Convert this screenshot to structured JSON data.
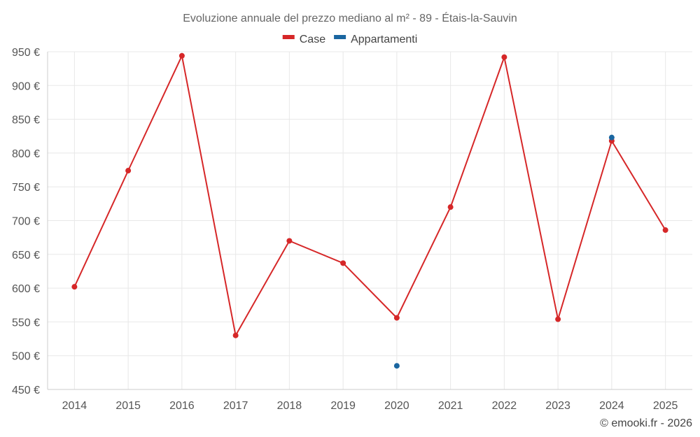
{
  "chart_data": {
    "type": "line",
    "title": "Evoluzione annuale del prezzo mediano al m² - 89 - Étais-la-Sauvin",
    "categories": [
      "2014",
      "2015",
      "2016",
      "2017",
      "2018",
      "2019",
      "2020",
      "2021",
      "2022",
      "2023",
      "2024",
      "2025"
    ],
    "series": [
      {
        "name": "Case",
        "color": "#d62728",
        "values": [
          602,
          774,
          944,
          530,
          670,
          637,
          556,
          720,
          942,
          554,
          818,
          686
        ]
      },
      {
        "name": "Appartamenti",
        "color": "#1a66a0",
        "values": [
          null,
          null,
          null,
          null,
          null,
          null,
          485,
          null,
          null,
          null,
          823,
          null
        ]
      }
    ],
    "ylim": [
      450,
      950
    ],
    "yticks": [
      450,
      500,
      550,
      600,
      650,
      700,
      750,
      800,
      850,
      900,
      950
    ],
    "ytick_labels": [
      "450 €",
      "500 €",
      "550 €",
      "600 €",
      "650 €",
      "700 €",
      "750 €",
      "800 €",
      "850 €",
      "900 €",
      "950 €"
    ],
    "xlabel": "",
    "ylabel": "",
    "grid": true,
    "legend_position": "top-center",
    "credit": "© emooki.fr - 2026"
  }
}
